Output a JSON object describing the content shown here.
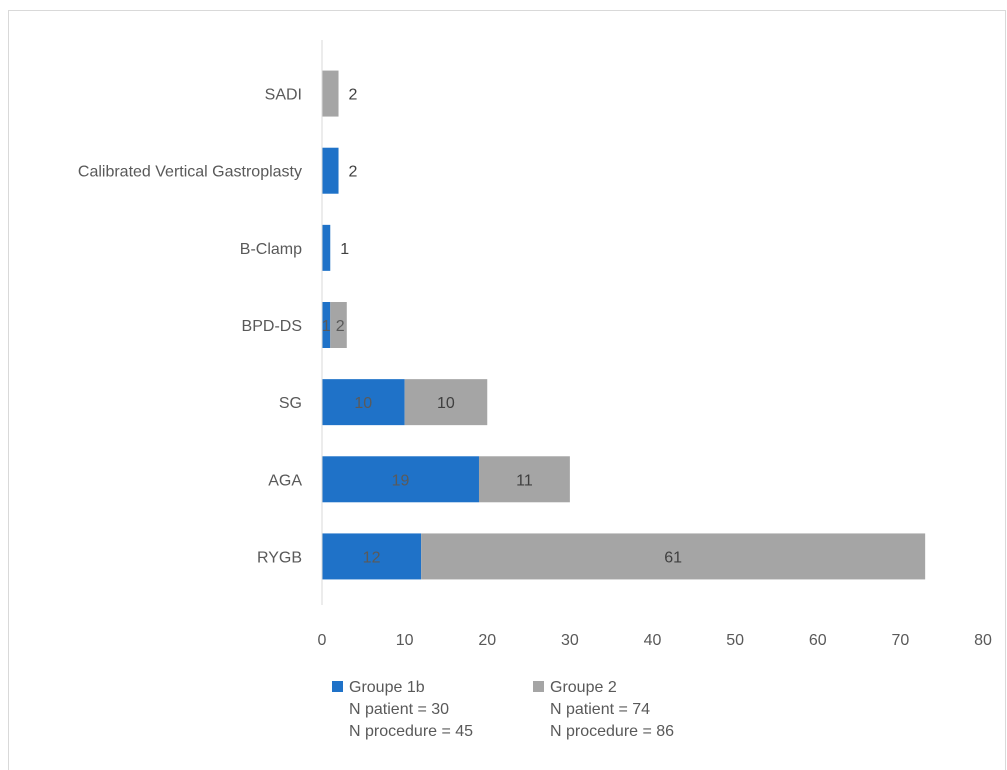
{
  "chart_data": {
    "type": "bar",
    "orientation": "horizontal",
    "stacked": true,
    "categories": [
      "SADI",
      "Calibrated Vertical Gastroplasty",
      "B-Clamp",
      "BPD-DS",
      "SG",
      "AGA",
      "RYGB"
    ],
    "series": [
      {
        "name": "Groupe 1b",
        "legend_lines": [
          "Groupe 1b",
          "N patient = 30",
          "N procedure = 45"
        ],
        "color": "#1f72c8",
        "values": [
          0,
          2,
          1,
          1,
          10,
          19,
          12
        ],
        "labels": [
          "",
          "2",
          "1",
          "1",
          "10",
          "19",
          "12"
        ]
      },
      {
        "name": "Groupe 2",
        "legend_lines": [
          "Groupe 2",
          "N patient = 74",
          "N procedure = 86"
        ],
        "color": "#a5a5a5",
        "values": [
          2,
          0,
          0,
          2,
          10,
          11,
          61
        ],
        "labels": [
          "2",
          "",
          "",
          "2",
          "10",
          "11",
          "61"
        ]
      }
    ],
    "xlim": [
      0,
      80
    ],
    "xticks": [
      "0",
      "10",
      "20",
      "30",
      "40",
      "50",
      "60",
      "70",
      "80"
    ],
    "grid": false,
    "legend": "bottom",
    "title": "",
    "xlabel": "",
    "ylabel": ""
  }
}
